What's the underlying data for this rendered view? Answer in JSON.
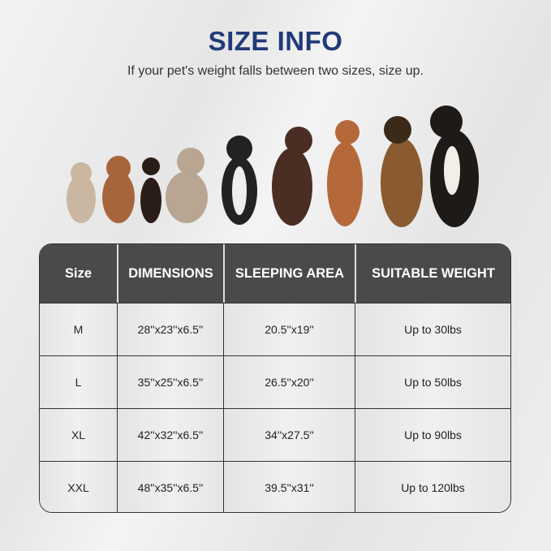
{
  "title": "SIZE INFO",
  "subtitle": "If your pet's weight falls between two sizes, size up.",
  "table": {
    "headers": [
      "Size",
      "DIMENSIONS",
      "SLEEPING AREA",
      "SUITABLE WEIGHT"
    ],
    "rows": [
      [
        "M",
        "28''x23''x6.5''",
        "20.5''x19''",
        "Up to 30lbs"
      ],
      [
        "L",
        "35''x25''x6.5''",
        "26.5''x20''",
        "Up to 50lbs"
      ],
      [
        "XL",
        "42''x32''x6.5''",
        "34''x27.5''",
        "Up to 90lbs"
      ],
      [
        "XXL",
        "48''x35''x6.5''",
        "39.5''x31''",
        "Up to 120lbs"
      ]
    ]
  },
  "colors": {
    "title": "#213a78",
    "header_bg": "#4a4a4a"
  }
}
